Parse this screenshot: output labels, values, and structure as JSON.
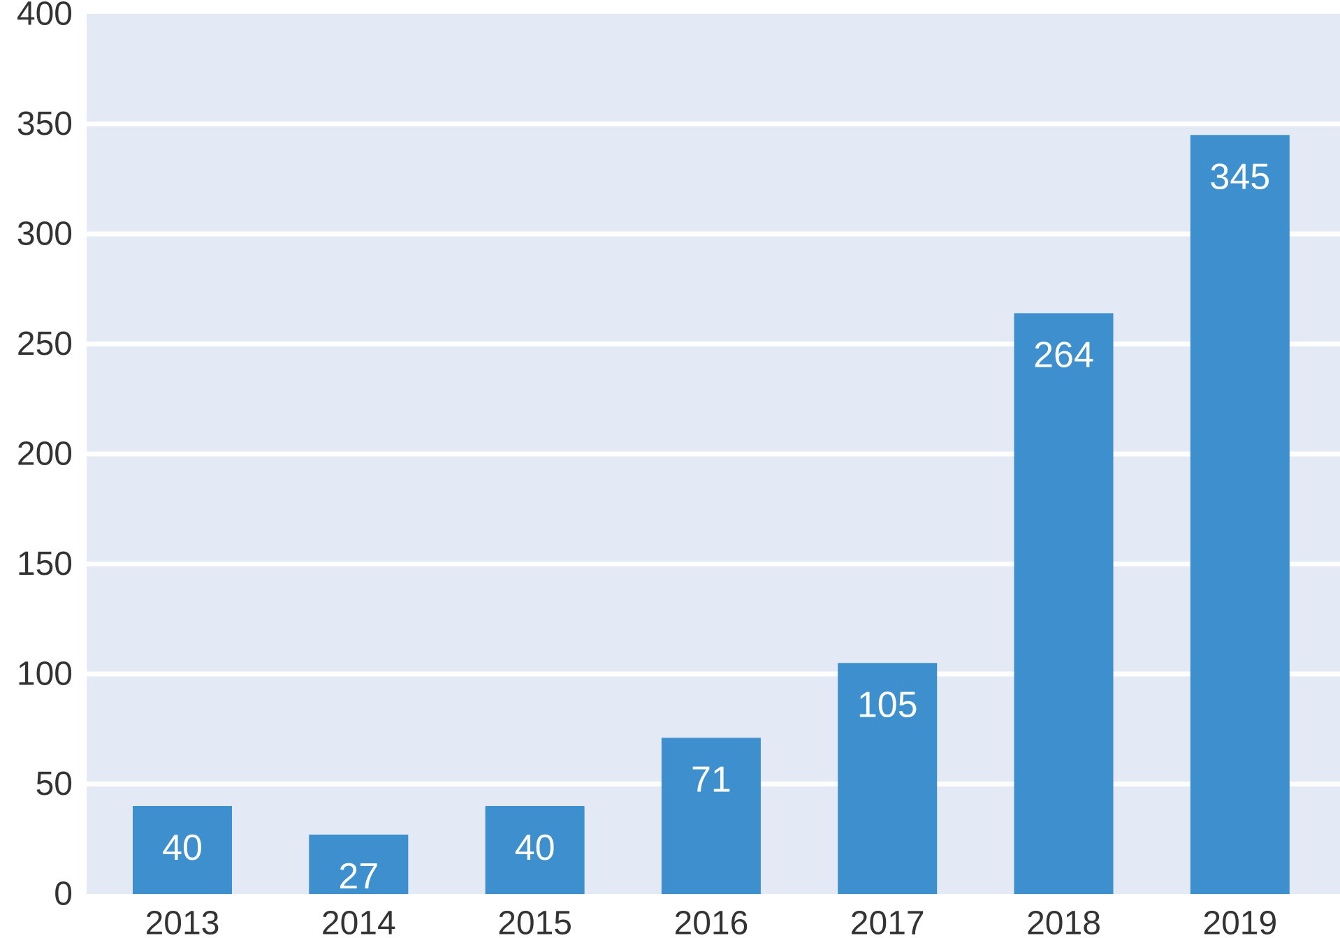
{
  "chart_data": {
    "type": "bar",
    "title": "",
    "xlabel": "",
    "ylabel": "",
    "categories": [
      "2013",
      "2014",
      "2015",
      "2016",
      "2017",
      "2018",
      "2019"
    ],
    "values": [
      40,
      27,
      40,
      71,
      105,
      264,
      345
    ],
    "data_labels": [
      "40",
      "27",
      "40",
      "71",
      "105",
      "264",
      "345"
    ],
    "ylim": [
      0,
      400
    ],
    "yticks": [
      0,
      50,
      100,
      150,
      200,
      250,
      300,
      350,
      400
    ],
    "ytick_labels": [
      "0",
      "50",
      "100",
      "150",
      "200",
      "250",
      "300",
      "350",
      "400"
    ],
    "grid": true,
    "legend": "none",
    "colors": {
      "bar": "#3d8fce",
      "plot_background": "#e3eaf6",
      "gridline": "#ffffff",
      "tick_text": "#333333",
      "data_label_text": "#ffffff"
    }
  }
}
